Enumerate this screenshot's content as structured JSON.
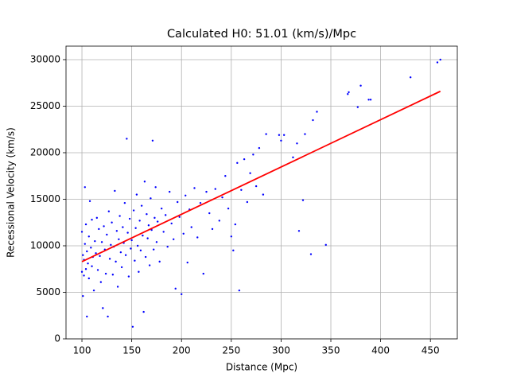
{
  "chart_data": {
    "type": "scatter",
    "title": "Calculated H0: 51.01 (km/s)/Mpc",
    "x_label": "Distance (Mpc)",
    "y_label": "Recessional Velocity (km/s)",
    "xlim": [
      84,
      477
    ],
    "ylim": [
      0,
      31450
    ],
    "xticks": [
      100,
      150,
      200,
      250,
      300,
      350,
      400,
      450
    ],
    "yticks": [
      0,
      5000,
      10000,
      15000,
      20000,
      25000,
      30000
    ],
    "grid": true,
    "series": [
      {
        "type": "scatter",
        "color": "#0000ff",
        "x": [
          100,
          100,
          101,
          101,
          102,
          102,
          103,
          103,
          104,
          104,
          105,
          105,
          106,
          107,
          107,
          108,
          109,
          110,
          110,
          111,
          112,
          113,
          114,
          115,
          116,
          117,
          118,
          119,
          120,
          121,
          122,
          123,
          124,
          125,
          126,
          127,
          128,
          129,
          130,
          131,
          132,
          133,
          134,
          135,
          136,
          137,
          138,
          139,
          140,
          141,
          142,
          143,
          144,
          145,
          146,
          147,
          148,
          149,
          150,
          151,
          152,
          153,
          154,
          155,
          156,
          157,
          158,
          159,
          160,
          161,
          162,
          163,
          164,
          165,
          166,
          167,
          168,
          169,
          170,
          171,
          172,
          173,
          174,
          175,
          176,
          178,
          180,
          182,
          184,
          186,
          188,
          190,
          192,
          194,
          196,
          198,
          200,
          202,
          204,
          206,
          208,
          210,
          213,
          216,
          219,
          222,
          225,
          228,
          231,
          234,
          238,
          241,
          244,
          247,
          250,
          252,
          254,
          256,
          258,
          260,
          263,
          266,
          269,
          272,
          275,
          278,
          282,
          285,
          298,
          300,
          303,
          312,
          316,
          318,
          322,
          324,
          330,
          332,
          336,
          345,
          367,
          368,
          377,
          380,
          388,
          390,
          430,
          457,
          460
        ],
        "values": [
          7200,
          11500,
          9000,
          4600,
          6800,
          8500,
          16300,
          10200,
          7500,
          12300,
          9400,
          2400,
          8100,
          11000,
          6500,
          14800,
          9800,
          7800,
          12800,
          8800,
          5200,
          10500,
          9200,
          13000,
          7400,
          11800,
          8900,
          6100,
          10400,
          3300,
          12100,
          9600,
          7000,
          11200,
          2400,
          13700,
          8600,
          10100,
          12500,
          6900,
          9900,
          15900,
          8300,
          11600,
          5600,
          10700,
          13200,
          9300,
          7700,
          12000,
          10300,
          14600,
          9000,
          21500,
          11400,
          6700,
          12900,
          9700,
          10600,
          1300,
          13800,
          8400,
          11900,
          15500,
          10000,
          7200,
          12700,
          9500,
          14300,
          11100,
          2900,
          16900,
          8800,
          13400,
          10800,
          12200,
          7900,
          15100,
          11700,
          21300,
          9600,
          13000,
          16300,
          10400,
          12600,
          8300,
          14000,
          11500,
          13300,
          9900,
          15800,
          12400,
          10700,
          5400,
          14700,
          13100,
          4800,
          11300,
          15400,
          8200,
          13900,
          12000,
          16200,
          10900,
          14600,
          7000,
          15800,
          13500,
          11800,
          16100,
          12700,
          15200,
          17500,
          14000,
          11000,
          9500,
          12300,
          18900,
          5200,
          16000,
          19300,
          14700,
          17800,
          19800,
          16400,
          20500,
          15500,
          22000,
          21900,
          21300,
          21900,
          19500,
          21000,
          11600,
          14900,
          22000,
          9100,
          23500,
          24400,
          10100,
          26300,
          26500,
          24900,
          27200,
          25700,
          25700,
          28100,
          29700,
          30000
        ]
      },
      {
        "type": "line",
        "color": "#ff0000",
        "x": [
          100,
          460
        ],
        "values": [
          8300,
          26600
        ]
      }
    ]
  }
}
